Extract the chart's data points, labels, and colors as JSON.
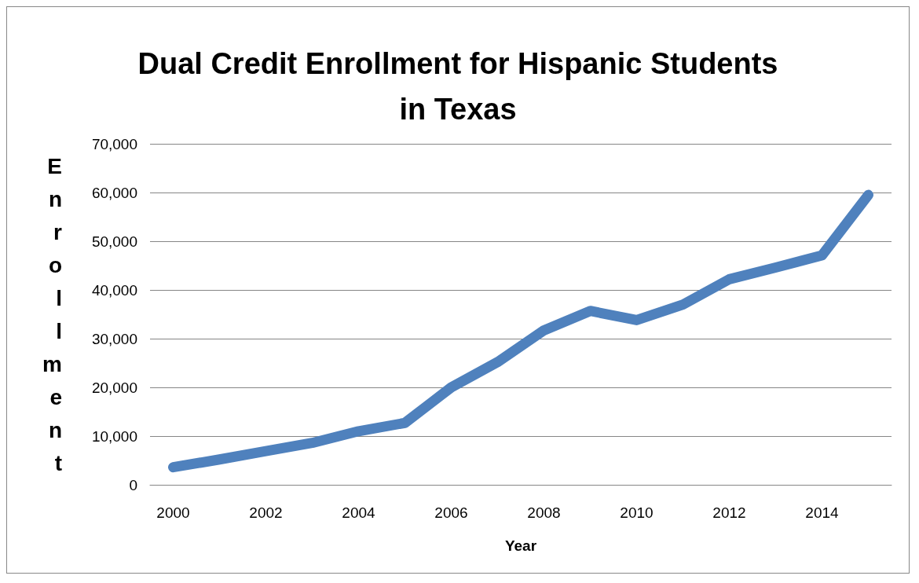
{
  "chart_data": {
    "type": "line",
    "title": "Dual Credit Enrollment for Hispanic Students\nin Texas",
    "xlabel": "Year",
    "ylabel": "Enrollment",
    "x": [
      2000,
      2001,
      2002,
      2003,
      2004,
      2005,
      2006,
      2007,
      2008,
      2009,
      2010,
      2011,
      2012,
      2013,
      2014,
      2015
    ],
    "series": [
      {
        "color": "#4f81bd",
        "values": [
          3600,
          5200,
          6900,
          8600,
          11000,
          12700,
          20000,
          25200,
          31700,
          35700,
          33800,
          37000,
          42200,
          44600,
          47100,
          59500
        ]
      }
    ],
    "xlim": [
      1999.5,
      2015.5
    ],
    "xticks": [
      2000,
      2002,
      2004,
      2006,
      2008,
      2010,
      2012,
      2014
    ],
    "ylim": [
      0,
      70000
    ],
    "yticks": [
      {
        "value": 0,
        "label": "0"
      },
      {
        "value": 10000,
        "label": "10,000"
      },
      {
        "value": 20000,
        "label": "20,000"
      },
      {
        "value": 30000,
        "label": "30,000"
      },
      {
        "value": 40000,
        "label": "40,000"
      },
      {
        "value": 50000,
        "label": "50,000"
      },
      {
        "value": 60000,
        "label": "60,000"
      },
      {
        "value": 70000,
        "label": "70,000"
      }
    ],
    "grid": "y",
    "line_style": "solid"
  }
}
